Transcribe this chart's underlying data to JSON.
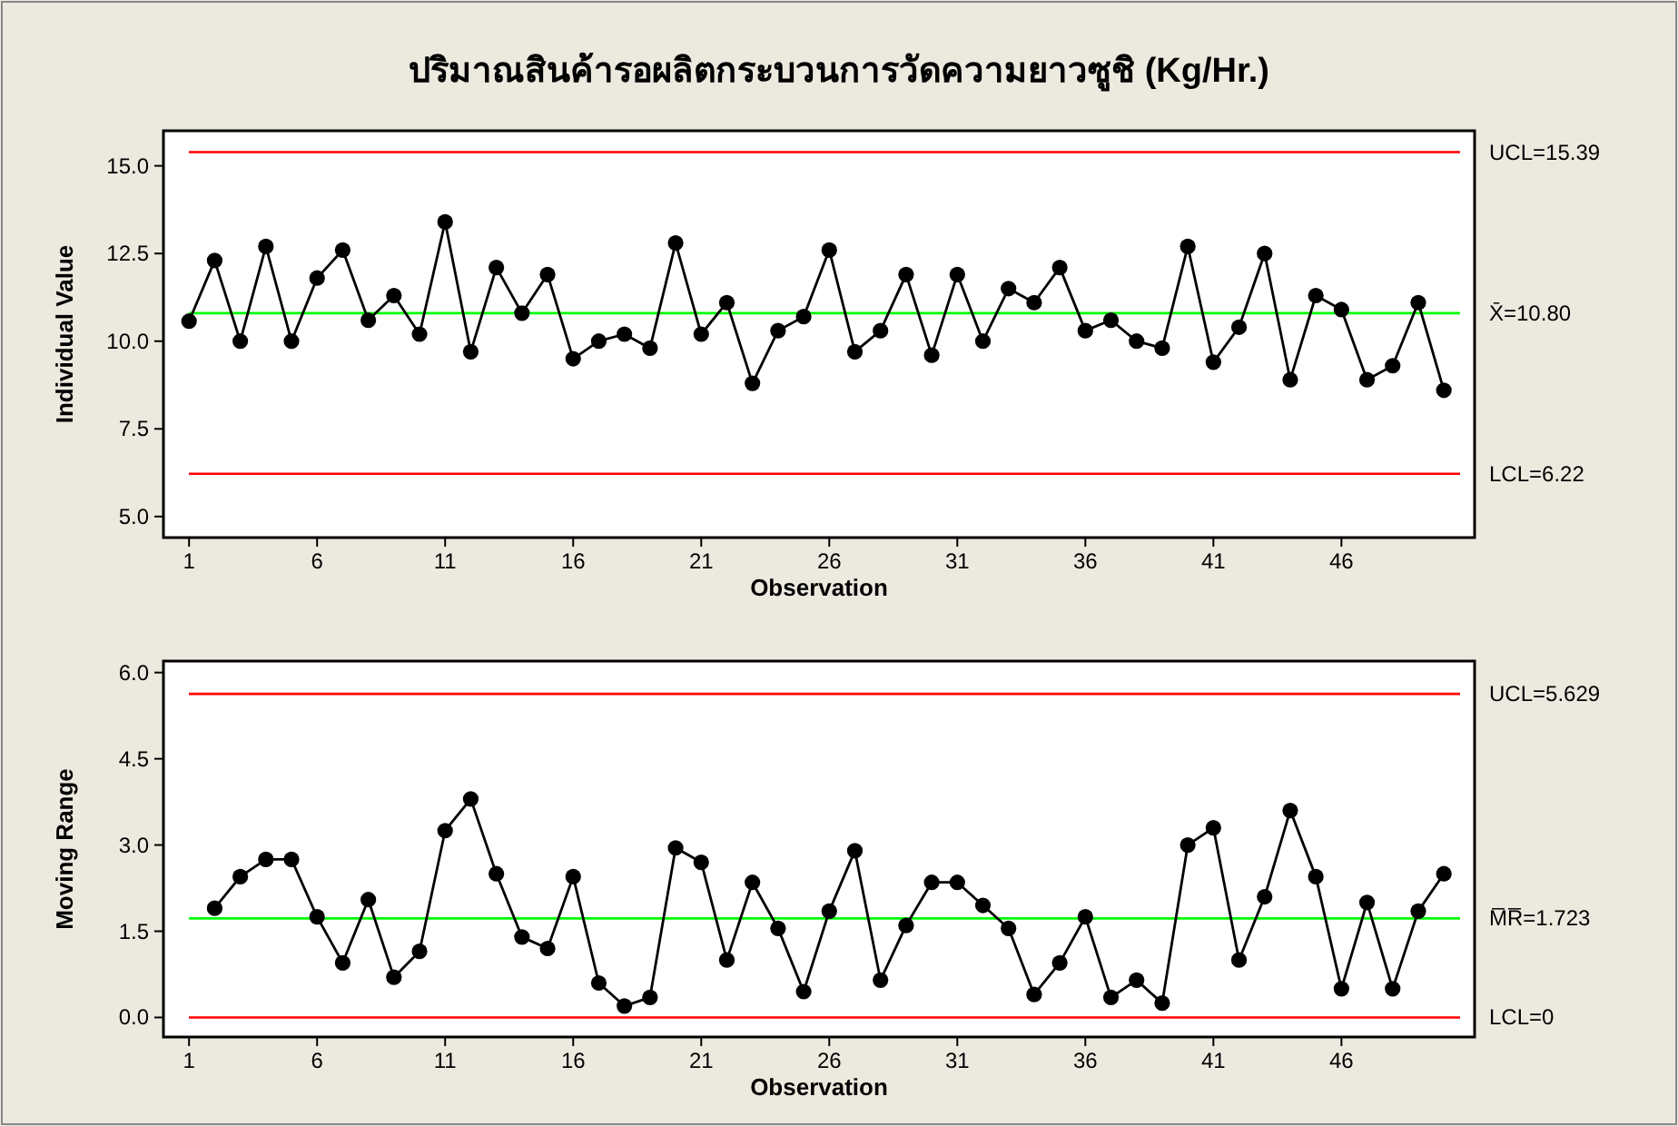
{
  "chart_data": [
    {
      "type": "line",
      "title": "ปริมาณสินค้ารอผลิตกระบวนการวัดความยาวซูชิ (Kg/Hr.)",
      "xlabel": "Observation",
      "ylabel": "Individual Value",
      "marker": "circle",
      "line_style": "solid",
      "grid": false,
      "x": [
        1,
        2,
        3,
        4,
        5,
        6,
        7,
        8,
        9,
        10,
        11,
        12,
        13,
        14,
        15,
        16,
        17,
        18,
        19,
        20,
        21,
        22,
        23,
        24,
        25,
        26,
        27,
        28,
        29,
        30,
        31,
        32,
        33,
        34,
        35,
        36,
        37,
        38,
        39,
        40,
        41,
        42,
        43,
        44,
        45,
        46,
        47,
        48,
        49,
        50
      ],
      "series": [
        {
          "color": "#000000",
          "values": [
            10.57,
            12.3,
            10.0,
            12.7,
            10.0,
            11.8,
            12.6,
            10.6,
            11.3,
            10.2,
            13.4,
            9.7,
            12.1,
            10.8,
            11.9,
            9.5,
            10.0,
            10.2,
            9.8,
            12.8,
            10.2,
            11.1,
            8.8,
            10.3,
            10.7,
            12.6,
            9.7,
            10.3,
            11.9,
            9.6,
            11.9,
            10.0,
            11.5,
            11.1,
            12.1,
            10.3,
            10.6,
            10.0,
            9.8,
            12.7,
            9.4,
            10.4,
            12.5,
            8.9,
            11.3,
            10.9,
            8.9,
            9.3,
            11.1,
            8.6
          ]
        }
      ],
      "xlim": [
        0,
        51.2
      ],
      "ylim": [
        4.4,
        16.0
      ],
      "xticks": [
        1,
        6,
        11,
        16,
        21,
        26,
        31,
        36,
        41,
        46
      ],
      "yticks": [
        {
          "value": 5,
          "label": "5.0"
        },
        7.5,
        {
          "value": 10,
          "label": "10.0"
        },
        12.5,
        {
          "value": 15,
          "label": "15.0"
        }
      ],
      "ref_lines": [
        {
          "axis": "y",
          "value": 15.39,
          "label": "UCL=15.39",
          "color": "#ff0000"
        },
        {
          "axis": "y",
          "value": 10.8,
          "label": "X̄=10.80",
          "color": "#00ff00"
        },
        {
          "axis": "y",
          "value": 6.22,
          "label": "LCL=6.22",
          "color": "#ff0000"
        }
      ]
    },
    {
      "type": "line",
      "xlabel": "Observation",
      "ylabel": "Moving Range",
      "marker": "circle",
      "line_style": "solid",
      "grid": false,
      "x": [
        2,
        3,
        4,
        5,
        6,
        7,
        8,
        9,
        10,
        11,
        12,
        13,
        14,
        15,
        16,
        17,
        18,
        19,
        20,
        21,
        22,
        23,
        24,
        25,
        26,
        27,
        28,
        29,
        30,
        31,
        32,
        33,
        34,
        35,
        36,
        37,
        38,
        39,
        40,
        41,
        42,
        43,
        44,
        45,
        46,
        47,
        48,
        49,
        50
      ],
      "series": [
        {
          "color": "#000000",
          "values": [
            1.9,
            2.45,
            2.75,
            2.75,
            1.75,
            0.95,
            2.05,
            0.7,
            1.15,
            3.25,
            3.8,
            2.5,
            1.4,
            1.2,
            2.45,
            0.6,
            0.2,
            0.35,
            2.95,
            2.7,
            1.0,
            2.35,
            1.55,
            0.45,
            1.85,
            2.9,
            0.65,
            1.6,
            2.35,
            2.35,
            1.95,
            1.55,
            0.4,
            0.95,
            1.75,
            0.35,
            0.65,
            0.25,
            3.0,
            3.3,
            1.0,
            2.1,
            3.6,
            2.45,
            0.5,
            2.0,
            0.5,
            1.85,
            2.5
          ]
        }
      ],
      "xlim": [
        0,
        51.2
      ],
      "ylim": [
        -0.34,
        6.2
      ],
      "xticks": [
        1,
        6,
        11,
        16,
        21,
        26,
        31,
        36,
        41,
        46
      ],
      "yticks": [
        {
          "value": 0,
          "label": "0.0"
        },
        1.5,
        {
          "value": 3,
          "label": "3.0"
        },
        4.5,
        {
          "value": 6,
          "label": "6.0"
        }
      ],
      "ref_lines": [
        {
          "axis": "y",
          "value": 5.629,
          "label": "UCL=5.629",
          "color": "#ff0000"
        },
        {
          "axis": "y",
          "value": 1.723,
          "label": "M̅R̅=1.723",
          "color": "#00ff00"
        },
        {
          "axis": "y",
          "value": 0,
          "label": "LCL=0",
          "color": "#ff0000"
        }
      ]
    }
  ]
}
